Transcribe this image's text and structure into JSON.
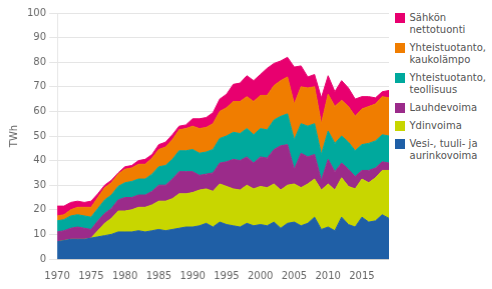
{
  "chart_data": {
    "type": "area",
    "stacked": true,
    "ylabel": "TWh",
    "xlim": [
      1970,
      2019
    ],
    "xticks": [
      1970,
      1975,
      1980,
      1985,
      1990,
      1995,
      2000,
      2005,
      2010,
      2015
    ],
    "ylim": [
      0,
      100
    ],
    "yticks": [
      0,
      10,
      20,
      30,
      40,
      50,
      60,
      70,
      80,
      90,
      100
    ],
    "grid": "y",
    "legend": "right",
    "x": [
      1970,
      1971,
      1972,
      1973,
      1974,
      1975,
      1976,
      1977,
      1978,
      1979,
      1980,
      1981,
      1982,
      1983,
      1984,
      1985,
      1986,
      1987,
      1988,
      1989,
      1990,
      1991,
      1992,
      1993,
      1994,
      1995,
      1996,
      1997,
      1998,
      1999,
      2000,
      2001,
      2002,
      2003,
      2004,
      2005,
      2006,
      2007,
      2008,
      2009,
      2010,
      2011,
      2012,
      2013,
      2014,
      2015,
      2016,
      2017,
      2018,
      2019
    ],
    "series": [
      {
        "name": "Vesi-, tuuli- ja\naurinkovoima",
        "color": "#1f5fa6",
        "values": [
          7.0,
          7.5,
          8.0,
          8.0,
          8.0,
          8.5,
          9.0,
          9.5,
          10.0,
          11.0,
          11.0,
          11.0,
          11.5,
          11.0,
          11.5,
          12.0,
          11.5,
          12.0,
          12.5,
          13.0,
          13.0,
          13.5,
          14.5,
          13.0,
          15.0,
          14.0,
          13.5,
          13.0,
          14.5,
          13.5,
          14.0,
          13.5,
          15.0,
          12.5,
          14.5,
          15.0,
          13.5,
          14.5,
          17.0,
          12.0,
          13.0,
          11.5,
          17.0,
          14.0,
          13.0,
          17.0,
          15.0,
          15.5,
          18.0,
          16.5
        ]
      },
      {
        "name": "Ydinvoima",
        "color": "#c8d600",
        "values": [
          0,
          0,
          0,
          0,
          0,
          0,
          2.5,
          5.0,
          6.5,
          8.5,
          8.5,
          9.0,
          9.5,
          10.0,
          10.5,
          11.5,
          12.0,
          12.5,
          14.0,
          13.5,
          14.0,
          14.5,
          14.0,
          14.5,
          15.5,
          15.5,
          15.0,
          15.0,
          15.5,
          15.0,
          15.5,
          15.5,
          15.5,
          15.5,
          15.5,
          15.5,
          15.5,
          16.0,
          15.5,
          16.0,
          17.5,
          16.5,
          16.0,
          15.5,
          15.5,
          15.5,
          16.0,
          17.5,
          18.0,
          19.5
        ]
      },
      {
        "name": "Lauhdevoima",
        "color": "#9b2b8a",
        "values": [
          4.0,
          4.0,
          4.5,
          5.0,
          4.5,
          3.5,
          4.0,
          4.0,
          4.0,
          4.5,
          5.5,
          5.0,
          5.0,
          5.0,
          5.5,
          6.5,
          6.5,
          8.0,
          9.0,
          9.0,
          8.5,
          6.0,
          6.0,
          7.5,
          8.5,
          10.0,
          12.0,
          12.0,
          11.5,
          10.5,
          12.0,
          12.0,
          14.0,
          18.0,
          16.5,
          6.0,
          14.0,
          11.0,
          10.0,
          4.0,
          10.0,
          7.5,
          6.0,
          7.0,
          5.0,
          3.5,
          5.0,
          4.0,
          3.5,
          3.0
        ]
      },
      {
        "name": "Yhteistuotanto,\nteollisuus",
        "color": "#00a99d",
        "values": [
          4.5,
          4.5,
          5.0,
          5.0,
          5.0,
          5.0,
          5.0,
          5.5,
          5.5,
          5.5,
          6.0,
          6.5,
          6.5,
          6.5,
          7.0,
          7.5,
          8.0,
          8.0,
          8.5,
          8.5,
          9.0,
          9.0,
          9.0,
          9.5,
          10.0,
          10.5,
          11.0,
          11.0,
          11.5,
          11.5,
          11.5,
          11.5,
          12.0,
          12.0,
          12.5,
          12.0,
          12.0,
          12.5,
          12.5,
          10.5,
          11.5,
          11.5,
          11.0,
          11.0,
          10.5,
          10.5,
          11.0,
          11.0,
          11.0,
          11.0
        ]
      },
      {
        "name": "Yhteistuotanto,\nkaukolämpo",
        "color": "#f07d00",
        "values": [
          2.0,
          2.0,
          2.5,
          3.0,
          3.5,
          4.0,
          4.5,
          5.0,
          5.0,
          5.0,
          5.5,
          5.5,
          6.0,
          6.0,
          6.5,
          7.0,
          7.5,
          8.0,
          8.5,
          9.0,
          9.5,
          10.0,
          10.0,
          10.5,
          11.0,
          11.5,
          12.5,
          13.0,
          13.0,
          13.5,
          13.5,
          14.0,
          14.0,
          14.5,
          15.0,
          14.5,
          15.0,
          15.5,
          15.0,
          12.5,
          15.0,
          15.0,
          14.5,
          14.5,
          14.0,
          14.5,
          15.0,
          15.0,
          15.5,
          15.5
        ]
      },
      {
        "name": "Sähkön\nnettotuonti",
        "color": "#e8006f",
        "values": [
          4.0,
          3.5,
          3.0,
          2.5,
          2.0,
          2.5,
          1.5,
          1.0,
          1.0,
          0.5,
          1.0,
          1.0,
          1.5,
          2.0,
          1.5,
          2.0,
          2.0,
          2.0,
          1.5,
          1.5,
          3.0,
          4.0,
          4.0,
          4.5,
          5.0,
          5.5,
          7.0,
          7.5,
          8.5,
          8.5,
          8.5,
          11.0,
          9.0,
          8.0,
          8.0,
          15.0,
          8.5,
          4.5,
          5.0,
          10.5,
          7.5,
          6.0,
          8.0,
          7.5,
          7.0,
          5.0,
          4.0,
          2.5,
          2.0,
          3.0
        ]
      }
    ]
  }
}
